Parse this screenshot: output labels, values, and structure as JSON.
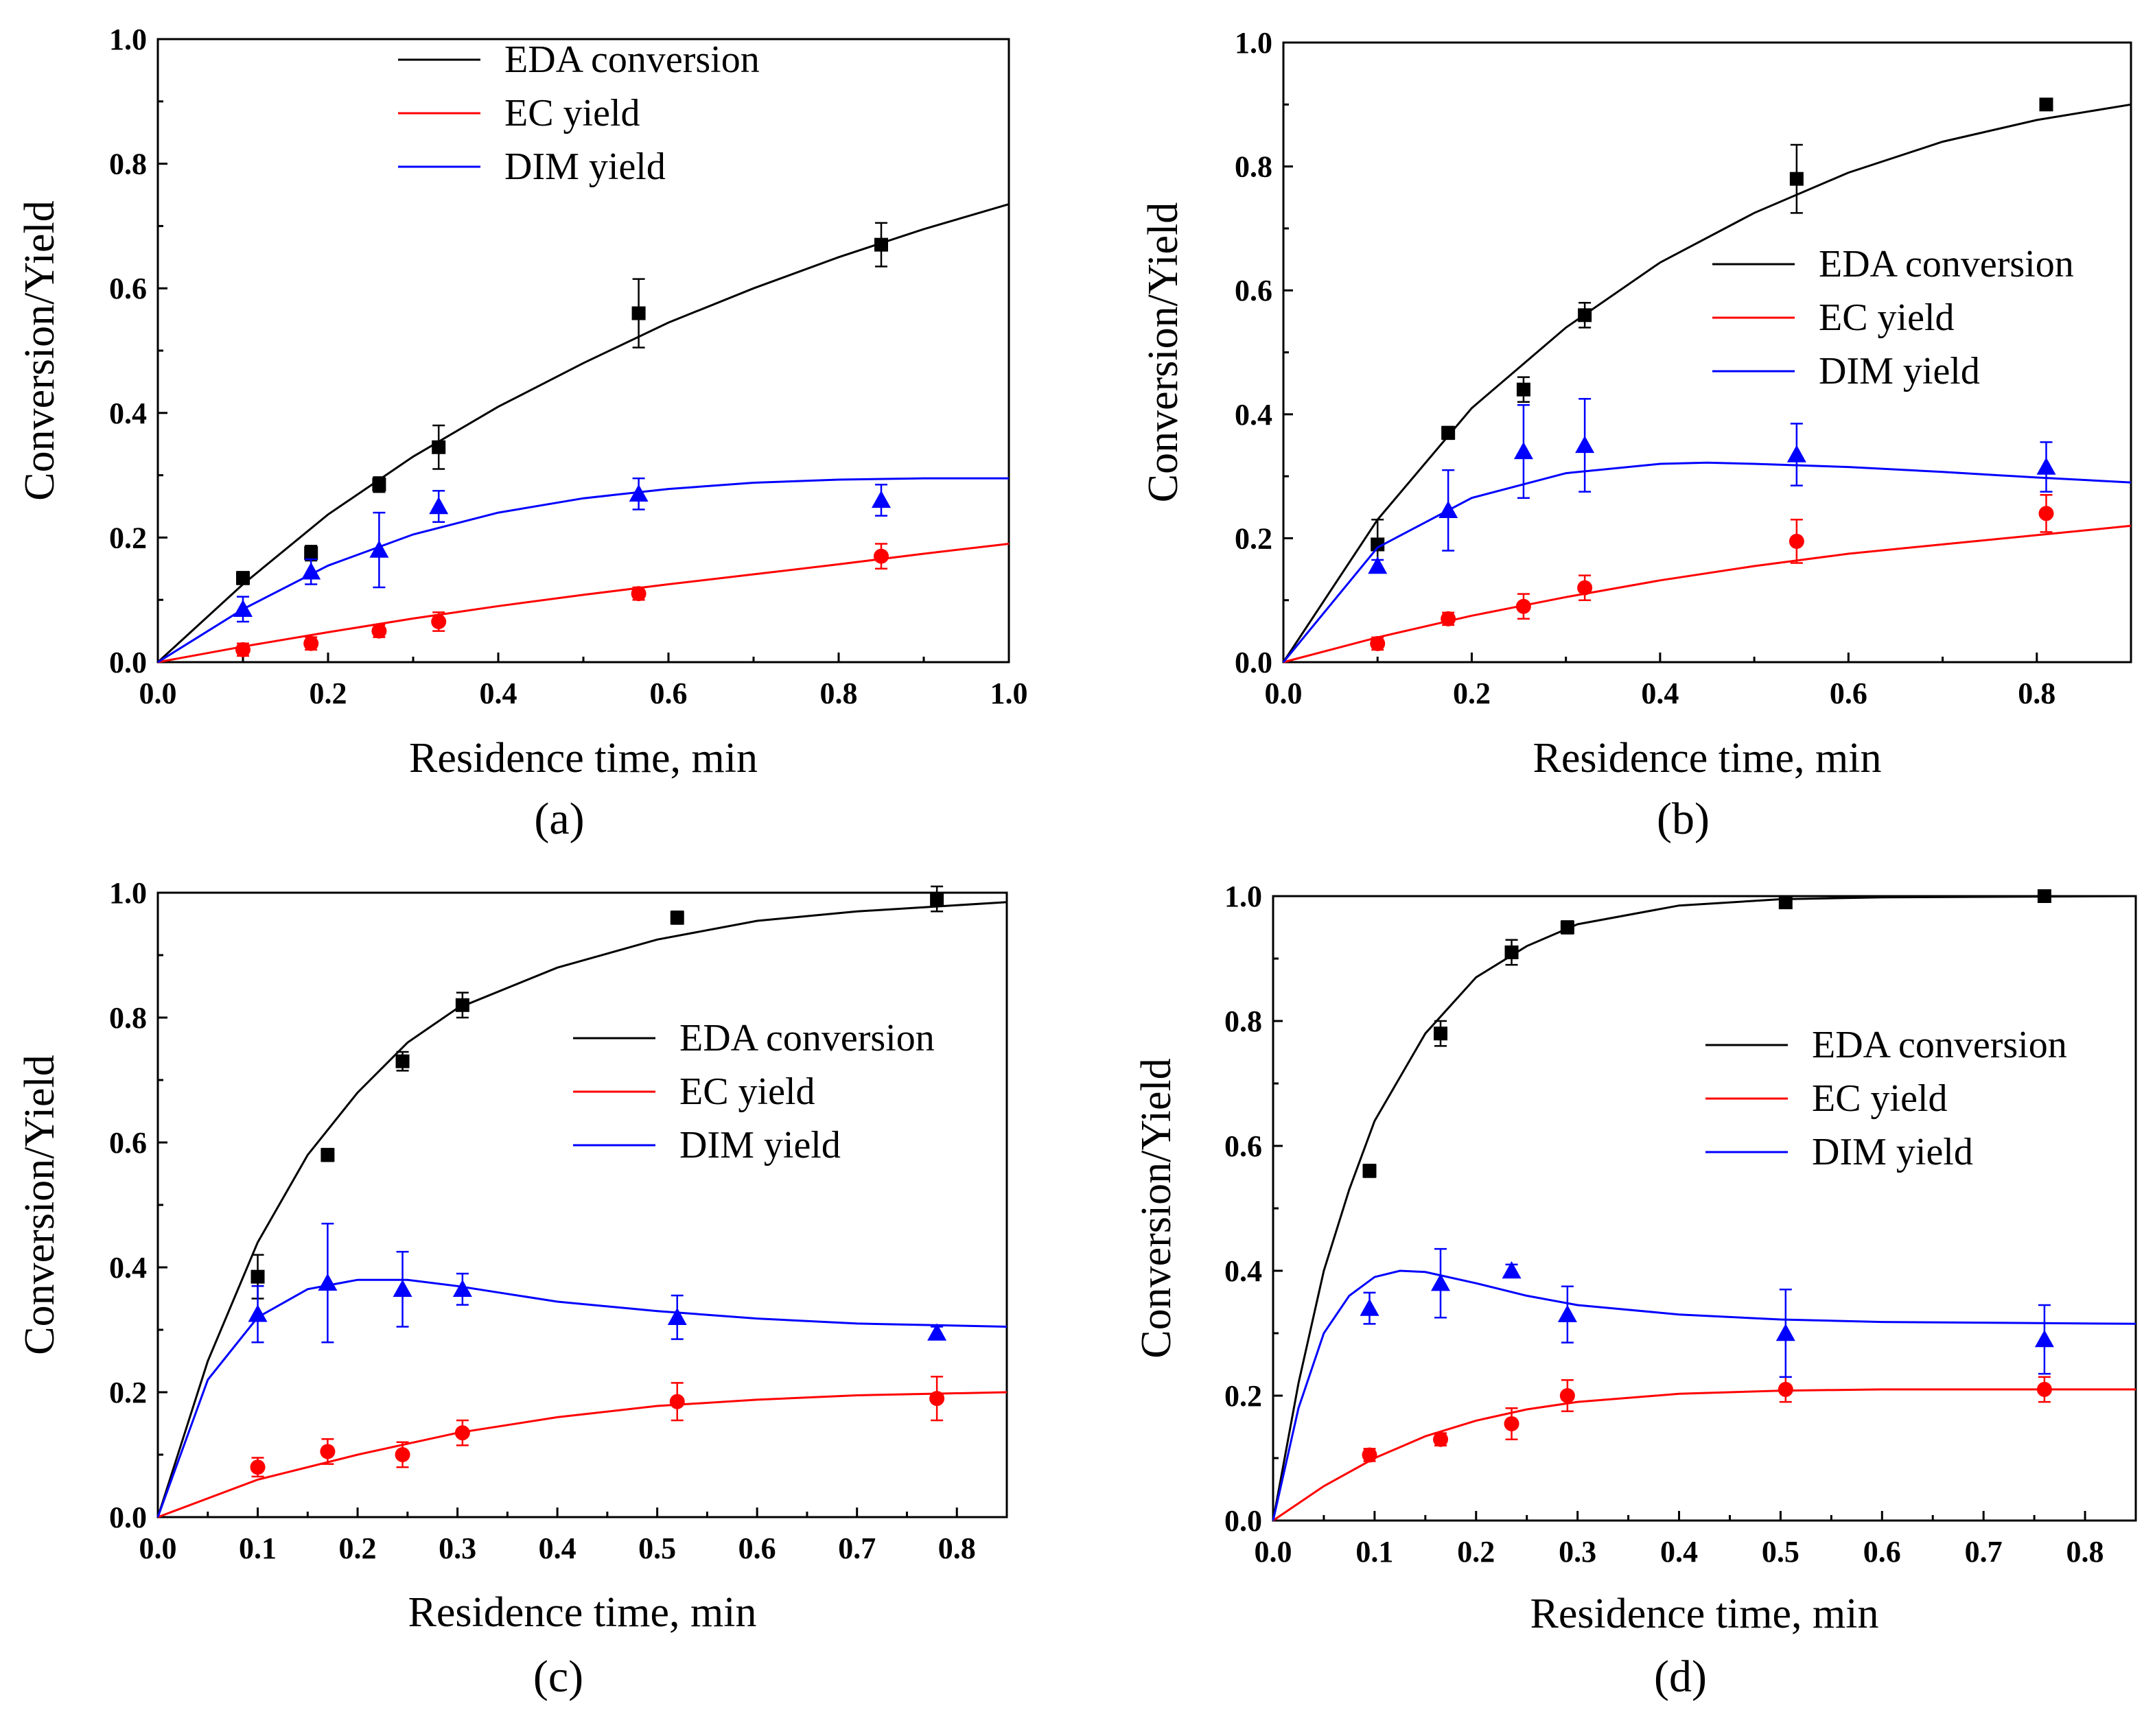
{
  "series_styles": {
    "EDA conversion": {
      "color": "#000000",
      "marker": "square"
    },
    "EC yield": {
      "color": "#ff0000",
      "marker": "circle"
    },
    "DIM yield": {
      "color": "#0000ff",
      "marker": "triangle"
    }
  },
  "chart_data": [
    {
      "panel": "(a)",
      "panel_letter": "a",
      "type": "scatter",
      "xlabel": "Residence time, min",
      "ylabel": "Conversion/Yield",
      "xlim": [
        0,
        1.0
      ],
      "ylim": [
        0,
        1.0
      ],
      "xticks": [
        "0.0",
        "0.2",
        "0.4",
        "0.6",
        "0.8",
        "1.0"
      ],
      "yticks": [
        "0.0",
        "0.2",
        "0.4",
        "0.6",
        "0.8",
        "1.0"
      ],
      "legend_position": "top-center",
      "series": [
        {
          "name": "EDA conversion",
          "x": [
            0.1,
            0.18,
            0.26,
            0.33,
            0.565,
            0.85
          ],
          "y": [
            0.135,
            0.175,
            0.285,
            0.345,
            0.56,
            0.67
          ],
          "err": [
            0.01,
            0.012,
            0.012,
            0.035,
            0.055,
            0.035
          ],
          "fit": {
            "x": [
              0,
              0.1,
              0.2,
              0.3,
              0.4,
              0.5,
              0.6,
              0.7,
              0.8,
              0.9,
              1.0
            ],
            "y": [
              0,
              0.125,
              0.237,
              0.33,
              0.41,
              0.48,
              0.545,
              0.6,
              0.65,
              0.695,
              0.735
            ]
          }
        },
        {
          "name": "EC yield",
          "x": [
            0.1,
            0.18,
            0.26,
            0.33,
            0.565,
            0.85
          ],
          "y": [
            0.02,
            0.03,
            0.05,
            0.065,
            0.11,
            0.17
          ],
          "err": [
            0.01,
            0.01,
            0.01,
            0.015,
            0.01,
            0.02
          ],
          "fit": {
            "x": [
              0,
              0.1,
              0.2,
              0.3,
              0.4,
              0.5,
              0.6,
              0.7,
              0.8,
              0.9,
              1.0
            ],
            "y": [
              0,
              0.025,
              0.048,
              0.07,
              0.09,
              0.108,
              0.125,
              0.141,
              0.157,
              0.174,
              0.19
            ]
          }
        },
        {
          "name": "DIM yield",
          "x": [
            0.1,
            0.18,
            0.26,
            0.33,
            0.565,
            0.85
          ],
          "y": [
            0.085,
            0.145,
            0.18,
            0.25,
            0.27,
            0.26
          ],
          "err": [
            0.02,
            0.02,
            0.06,
            0.025,
            0.025,
            0.025
          ],
          "fit": {
            "x": [
              0,
              0.1,
              0.2,
              0.3,
              0.4,
              0.5,
              0.6,
              0.7,
              0.8,
              0.9,
              1.0
            ],
            "y": [
              0,
              0.085,
              0.155,
              0.205,
              0.24,
              0.263,
              0.278,
              0.288,
              0.293,
              0.295,
              0.295
            ]
          }
        }
      ]
    },
    {
      "panel": "(b)",
      "panel_letter": "b",
      "type": "scatter",
      "xlabel": "Residence time, min",
      "ylabel": "Conversion/Yield",
      "xlim": [
        0,
        0.9
      ],
      "ylim": [
        0,
        1.0
      ],
      "xticks": [
        "0.0",
        "0.2",
        "0.4",
        "0.6",
        "0.8"
      ],
      "yticks": [
        "0.0",
        "0.2",
        "0.4",
        "0.6",
        "0.8",
        "1.0"
      ],
      "legend_position": "middle-right",
      "series": [
        {
          "name": "EDA conversion",
          "x": [
            0.1,
            0.175,
            0.255,
            0.32,
            0.545,
            0.81
          ],
          "y": [
            0.19,
            0.37,
            0.44,
            0.56,
            0.78,
            0.9
          ],
          "err": [
            0.04,
            0.01,
            0.02,
            0.02,
            0.055,
            0.005
          ],
          "fit": {
            "x": [
              0,
              0.1,
              0.2,
              0.3,
              0.4,
              0.5,
              0.6,
              0.7,
              0.8,
              0.9
            ],
            "y": [
              0,
              0.23,
              0.41,
              0.54,
              0.645,
              0.725,
              0.79,
              0.84,
              0.875,
              0.9
            ]
          }
        },
        {
          "name": "EC yield",
          "x": [
            0.1,
            0.175,
            0.255,
            0.32,
            0.545,
            0.81
          ],
          "y": [
            0.03,
            0.07,
            0.09,
            0.12,
            0.195,
            0.24
          ],
          "err": [
            0.01,
            0.01,
            0.02,
            0.02,
            0.035,
            0.03
          ],
          "fit": {
            "x": [
              0,
              0.1,
              0.2,
              0.3,
              0.4,
              0.5,
              0.6,
              0.7,
              0.8,
              0.9
            ],
            "y": [
              0,
              0.04,
              0.075,
              0.105,
              0.132,
              0.155,
              0.175,
              0.19,
              0.205,
              0.22
            ]
          }
        },
        {
          "name": "DIM yield",
          "x": [
            0.1,
            0.175,
            0.255,
            0.32,
            0.545,
            0.81
          ],
          "y": [
            0.155,
            0.245,
            0.34,
            0.35,
            0.335,
            0.315
          ],
          "err": [
            0.01,
            0.065,
            0.075,
            0.075,
            0.05,
            0.04
          ],
          "fit": {
            "x": [
              0,
              0.1,
              0.2,
              0.3,
              0.4,
              0.45,
              0.5,
              0.6,
              0.7,
              0.8,
              0.9
            ],
            "y": [
              0,
              0.185,
              0.265,
              0.305,
              0.32,
              0.322,
              0.32,
              0.315,
              0.307,
              0.298,
              0.29
            ]
          }
        }
      ]
    },
    {
      "panel": "(c)",
      "panel_letter": "c",
      "type": "scatter",
      "xlabel": "Residence time, min",
      "ylabel": "Conversion/Yield",
      "xlim": [
        0,
        0.85
      ],
      "ylim": [
        0,
        1.0
      ],
      "xticks": [
        "0.0",
        "0.1",
        "0.2",
        "0.3",
        "0.4",
        "0.5",
        "0.6",
        "0.7",
        "0.8"
      ],
      "yticks": [
        "0.0",
        "0.2",
        "0.4",
        "0.6",
        "0.8",
        "1.0"
      ],
      "legend_position": "middle-right",
      "series": [
        {
          "name": "EDA conversion",
          "x": [
            0.1,
            0.17,
            0.245,
            0.305,
            0.52,
            0.78
          ],
          "y": [
            0.385,
            0.58,
            0.73,
            0.82,
            0.96,
            0.99
          ],
          "err": [
            0.035,
            0.01,
            0.015,
            0.02,
            0.01,
            0.02
          ],
          "fit": {
            "x": [
              0,
              0.05,
              0.1,
              0.15,
              0.2,
              0.25,
              0.3,
              0.4,
              0.5,
              0.6,
              0.7,
              0.85
            ],
            "y": [
              0,
              0.25,
              0.44,
              0.58,
              0.68,
              0.76,
              0.815,
              0.88,
              0.925,
              0.955,
              0.97,
              0.985
            ]
          }
        },
        {
          "name": "EC yield",
          "x": [
            0.1,
            0.17,
            0.245,
            0.305,
            0.52,
            0.78
          ],
          "y": [
            0.08,
            0.105,
            0.1,
            0.135,
            0.185,
            0.19
          ],
          "err": [
            0.015,
            0.02,
            0.02,
            0.02,
            0.03,
            0.035
          ],
          "fit": {
            "x": [
              0,
              0.1,
              0.2,
              0.3,
              0.4,
              0.5,
              0.6,
              0.7,
              0.85
            ],
            "y": [
              0,
              0.06,
              0.1,
              0.135,
              0.16,
              0.178,
              0.188,
              0.195,
              0.2
            ]
          }
        },
        {
          "name": "DIM yield",
          "x": [
            0.1,
            0.17,
            0.245,
            0.305,
            0.52,
            0.78
          ],
          "y": [
            0.325,
            0.375,
            0.365,
            0.365,
            0.32,
            0.295
          ],
          "err": [
            0.045,
            0.095,
            0.06,
            0.025,
            0.035,
            0.01
          ],
          "fit": {
            "x": [
              0,
              0.05,
              0.1,
              0.15,
              0.2,
              0.25,
              0.3,
              0.4,
              0.5,
              0.6,
              0.7,
              0.85
            ],
            "y": [
              0,
              0.22,
              0.32,
              0.365,
              0.38,
              0.38,
              0.37,
              0.345,
              0.33,
              0.318,
              0.31,
              0.305
            ]
          }
        }
      ]
    },
    {
      "panel": "(d)",
      "panel_letter": "d",
      "type": "scatter",
      "xlabel": "Residence time, min",
      "ylabel": "Conversion/Yield",
      "xlim": [
        0,
        0.85
      ],
      "ylim": [
        0,
        1.0
      ],
      "xticks": [
        "0.0",
        "0.1",
        "0.2",
        "0.3",
        "0.4",
        "0.5",
        "0.6",
        "0.7",
        "0.8"
      ],
      "yticks": [
        "0.0",
        "0.2",
        "0.4",
        "0.6",
        "0.8",
        "1.0"
      ],
      "legend_position": "middle-right",
      "series": [
        {
          "name": "EDA conversion",
          "x": [
            0.095,
            0.165,
            0.235,
            0.29,
            0.505,
            0.76
          ],
          "y": [
            0.56,
            0.78,
            0.91,
            0.95,
            0.99,
            1.0
          ],
          "err": [
            0.01,
            0.02,
            0.02,
            0.01,
            0.005,
            0.003
          ],
          "fit": {
            "x": [
              0,
              0.025,
              0.05,
              0.075,
              0.1,
              0.15,
              0.2,
              0.25,
              0.3,
              0.4,
              0.5,
              0.6,
              0.85
            ],
            "y": [
              0,
              0.22,
              0.4,
              0.53,
              0.64,
              0.78,
              0.87,
              0.92,
              0.955,
              0.985,
              0.995,
              0.998,
              1.0
            ]
          }
        },
        {
          "name": "EC yield",
          "x": [
            0.095,
            0.165,
            0.235,
            0.29,
            0.505,
            0.76
          ],
          "y": [
            0.105,
            0.13,
            0.155,
            0.2,
            0.21,
            0.21
          ],
          "err": [
            0.01,
            0.01,
            0.025,
            0.025,
            0.02,
            0.02
          ],
          "fit": {
            "x": [
              0,
              0.05,
              0.1,
              0.15,
              0.2,
              0.25,
              0.3,
              0.4,
              0.5,
              0.6,
              0.85
            ],
            "y": [
              0,
              0.055,
              0.1,
              0.135,
              0.16,
              0.178,
              0.19,
              0.203,
              0.208,
              0.21,
              0.21
            ]
          }
        },
        {
          "name": "DIM yield",
          "x": [
            0.095,
            0.165,
            0.235,
            0.29,
            0.505,
            0.76
          ],
          "y": [
            0.34,
            0.38,
            0.4,
            0.33,
            0.3,
            0.29
          ],
          "err": [
            0.025,
            0.055,
            0.01,
            0.045,
            0.07,
            0.055
          ],
          "fit": {
            "x": [
              0,
              0.025,
              0.05,
              0.075,
              0.1,
              0.125,
              0.15,
              0.2,
              0.25,
              0.3,
              0.4,
              0.5,
              0.6,
              0.85
            ],
            "y": [
              0,
              0.18,
              0.3,
              0.36,
              0.39,
              0.4,
              0.398,
              0.38,
              0.36,
              0.345,
              0.33,
              0.322,
              0.318,
              0.315
            ]
          }
        }
      ]
    }
  ]
}
